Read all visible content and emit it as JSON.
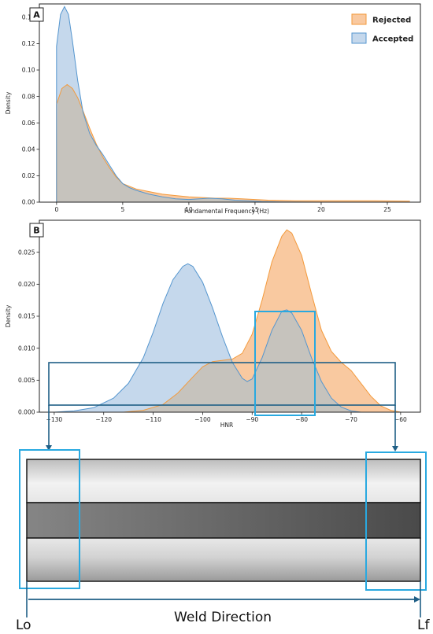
{
  "colors": {
    "rejected_fill": "#f9c9a0",
    "rejected_line": "#f39a3c",
    "accepted_fill": "#c5d8ec",
    "accepted_line": "#5596cf",
    "overlap_fill": "#c6c3bd",
    "highlight_box": "#29a9e0",
    "connector": "#1f5f86",
    "band_dark": "#3e3e3e",
    "band_light": "#f0f0f0"
  },
  "chart_data": [
    {
      "type": "area",
      "panel_label": "A",
      "xlabel": "Fundamental Frequency (Hz)",
      "ylabel": "Density",
      "xlim": [
        -1.3,
        27.5
      ],
      "ylim": [
        0,
        0.15
      ],
      "xticks": [
        0,
        5,
        10,
        15,
        20,
        25
      ],
      "yticks": [
        0.0,
        0.02,
        0.04,
        0.06,
        0.08,
        0.1,
        0.12,
        0.14
      ],
      "ytick_labels": [
        "0.00",
        "0.02",
        "0.04",
        "0.06",
        "0.08",
        "0.10",
        "0.12",
        "0.14"
      ],
      "legend_position": "top-right",
      "series": [
        {
          "name": "Rejected",
          "x": [
            0,
            0.4,
            0.8,
            1.2,
            1.6,
            2.0,
            2.5,
            3.0,
            3.5,
            4.0,
            4.5,
            5.0,
            6.0,
            7.0,
            8.0,
            9.0,
            10.0,
            11.0,
            12.0,
            13.0,
            14.0,
            15.0,
            16.0,
            18.0,
            20.0,
            22.0,
            24.0,
            26.7
          ],
          "y": [
            0.074,
            0.086,
            0.089,
            0.086,
            0.079,
            0.069,
            0.056,
            0.044,
            0.034,
            0.026,
            0.019,
            0.014,
            0.01,
            0.008,
            0.006,
            0.005,
            0.004,
            0.0035,
            0.003,
            0.003,
            0.0025,
            0.002,
            0.0015,
            0.001,
            0.001,
            0.001,
            0.001,
            0.0007
          ]
        },
        {
          "name": "Accepted",
          "x": [
            0,
            0.3,
            0.6,
            0.9,
            1.2,
            1.6,
            2.0,
            2.5,
            3.0,
            3.5,
            4.0,
            4.5,
            5.0,
            5.5,
            6.0,
            7.0,
            8.0,
            9.0,
            10.0,
            10.8,
            11.5,
            12.5,
            13.5,
            14.5,
            15.5,
            17.0,
            20.0
          ],
          "y": [
            0.118,
            0.142,
            0.148,
            0.142,
            0.122,
            0.092,
            0.068,
            0.052,
            0.043,
            0.036,
            0.028,
            0.02,
            0.014,
            0.011,
            0.009,
            0.006,
            0.004,
            0.0025,
            0.002,
            0.0025,
            0.003,
            0.0025,
            0.0015,
            0.001,
            0.0005,
            0.0002,
            0.0
          ]
        }
      ]
    },
    {
      "type": "area",
      "panel_label": "B",
      "xlabel": "HNR",
      "ylabel": "Density",
      "xlim": [
        -133,
        -56
      ],
      "ylim": [
        0,
        0.03
      ],
      "xticks": [
        -130,
        -120,
        -110,
        -100,
        -90,
        -80,
        -70,
        -60
      ],
      "xtick_labels": [
        "−130",
        "−120",
        "−110",
        "−100",
        "−90",
        "−80",
        "−70",
        "−60"
      ],
      "yticks": [
        0.0,
        0.005,
        0.01,
        0.015,
        0.02,
        0.025
      ],
      "ytick_labels": [
        "0.000",
        "0.005",
        "0.010",
        "0.015",
        "0.020",
        "0.025"
      ],
      "series": [
        {
          "name": "Rejected",
          "x": [
            -116,
            -112,
            -108,
            -105,
            -102,
            -100,
            -98,
            -96,
            -94,
            -92,
            -90,
            -88,
            -86,
            -84,
            -83,
            -82,
            -80,
            -78,
            -76,
            -74,
            -72,
            -70,
            -68,
            -66,
            -64,
            -62,
            -60
          ],
          "y": [
            0.0,
            0.0003,
            0.0012,
            0.003,
            0.0055,
            0.0071,
            0.0079,
            0.0081,
            0.0083,
            0.0092,
            0.0122,
            0.0175,
            0.0235,
            0.0275,
            0.0285,
            0.028,
            0.0245,
            0.0185,
            0.0128,
            0.0095,
            0.0078,
            0.0065,
            0.0045,
            0.0025,
            0.001,
            0.0003,
            0.0
          ]
        },
        {
          "name": "Accepted",
          "x": [
            -130,
            -126,
            -122,
            -118,
            -115,
            -112,
            -110,
            -108,
            -106,
            -104,
            -103,
            -102,
            -100,
            -98,
            -96,
            -94,
            -92,
            -91,
            -90,
            -88,
            -86,
            -84,
            -83,
            -82,
            -80,
            -78,
            -76,
            -74,
            -72,
            -70,
            -68
          ],
          "y": [
            0.0,
            0.0002,
            0.0007,
            0.0022,
            0.0045,
            0.0085,
            0.0125,
            0.017,
            0.0207,
            0.0228,
            0.0232,
            0.0228,
            0.0203,
            0.0163,
            0.0118,
            0.0078,
            0.0053,
            0.0048,
            0.0052,
            0.0085,
            0.0128,
            0.0158,
            0.016,
            0.0155,
            0.0128,
            0.0085,
            0.0048,
            0.0022,
            0.0008,
            0.0002,
            0.0
          ]
        }
      ]
    }
  ],
  "diagram": {
    "left_label": "Lo",
    "right_label": "Lf",
    "direction_label": "Weld Direction"
  }
}
